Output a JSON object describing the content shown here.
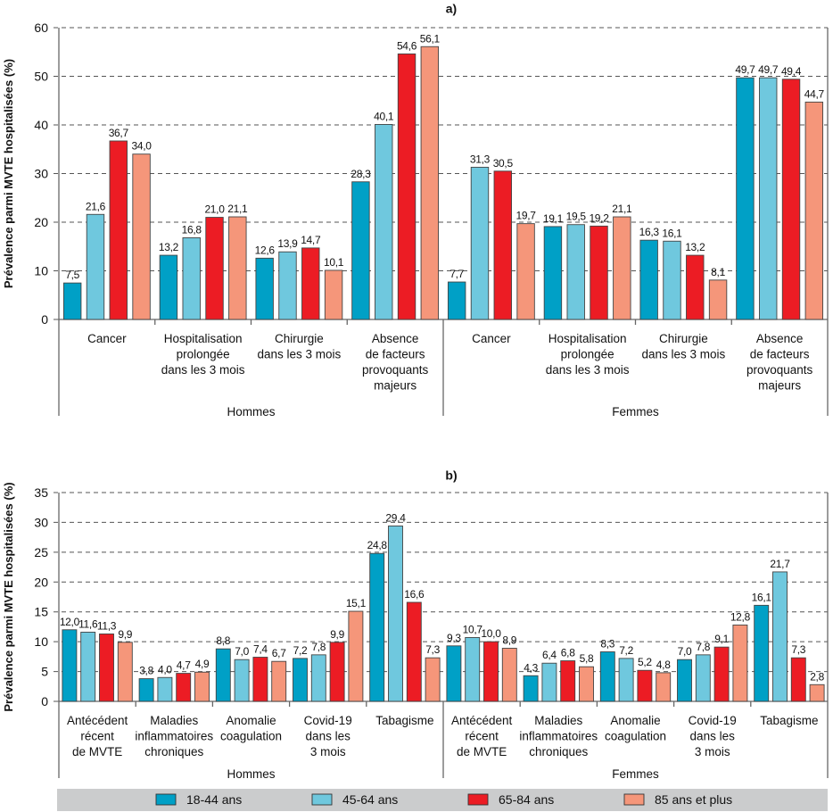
{
  "legend": [
    {
      "label": "18-44 ans",
      "color": "#00a0c6"
    },
    {
      "label": "45-64 ans",
      "color": "#6fc8de"
    },
    {
      "label": "65-84 ans",
      "color": "#ec1c24"
    },
    {
      "label": "85 ans et plus",
      "color": "#f5967a"
    }
  ],
  "chart_data": [
    {
      "type": "bar",
      "title": "a)",
      "ylabel": "Prévalence parmi MVTE hospitalisées (%)",
      "xlabel": "",
      "ylim": [
        0,
        60
      ],
      "yticks": [
        0,
        10,
        20,
        30,
        40,
        50,
        60
      ],
      "grid": true,
      "legend_position": "bottom",
      "groups": [
        {
          "name": "Hommes",
          "categories": [
            {
              "label": [
                "Cancer"
              ],
              "values": [
                "7,5",
                "21,6",
                "36,7",
                "34,0"
              ]
            },
            {
              "label": [
                "Hospitalisation",
                "prolongée",
                "dans les 3 mois"
              ],
              "values": [
                "13,2",
                "16,8",
                "21,0",
                "21,1"
              ]
            },
            {
              "label": [
                "Chirurgie",
                "dans les 3 mois"
              ],
              "values": [
                "12,6",
                "13,9",
                "14,7",
                "10,1"
              ]
            },
            {
              "label": [
                "Absence",
                "de facteurs",
                "provoquants",
                "majeurs"
              ],
              "values": [
                "28,3",
                "40,1",
                "54,6",
                "56,1"
              ]
            }
          ]
        },
        {
          "name": "Femmes",
          "categories": [
            {
              "label": [
                "Cancer"
              ],
              "values": [
                "7,7",
                "31,3",
                "30,5",
                "19,7"
              ]
            },
            {
              "label": [
                "Hospitalisation",
                "prolongée",
                "dans les 3 mois"
              ],
              "values": [
                "19,1",
                "19,5",
                "19,2",
                "21,1"
              ]
            },
            {
              "label": [
                "Chirurgie",
                "dans les 3 mois"
              ],
              "values": [
                "16,3",
                "16,1",
                "13,2",
                "8,1"
              ]
            },
            {
              "label": [
                "Absence",
                "de facteurs",
                "provoquants",
                "majeurs"
              ],
              "values": [
                "49,7",
                "49,7",
                "49,4",
                "44,7"
              ]
            }
          ]
        }
      ]
    },
    {
      "type": "bar",
      "title": "b)",
      "ylabel": "Prévalence parmi MVTE hospitalisées (%)",
      "xlabel": "",
      "ylim": [
        0,
        35
      ],
      "yticks": [
        0,
        5,
        10,
        15,
        20,
        25,
        30,
        35
      ],
      "grid": true,
      "legend_position": "bottom",
      "groups": [
        {
          "name": "Hommes",
          "categories": [
            {
              "label": [
                "Antécédent",
                "récent",
                "de MVTE"
              ],
              "values": [
                "12,0",
                "11,6",
                "11,3",
                "9,9"
              ]
            },
            {
              "label": [
                "Maladies",
                "inflammatoires",
                "chroniques"
              ],
              "values": [
                "3,8",
                "4,0",
                "4,7",
                "4,9"
              ]
            },
            {
              "label": [
                "Anomalie",
                "coagulation"
              ],
              "values": [
                "8,8",
                "7,0",
                "7,4",
                "6,7"
              ]
            },
            {
              "label": [
                "Covid-19",
                "dans les",
                "3 mois"
              ],
              "values": [
                "7,2",
                "7,8",
                "9,9",
                "15,1"
              ]
            },
            {
              "label": [
                "Tabagisme"
              ],
              "values": [
                "24,8",
                "29,4",
                "16,6",
                "7,3"
              ]
            }
          ]
        },
        {
          "name": "Femmes",
          "categories": [
            {
              "label": [
                "Antécédent",
                "récent",
                "de MVTE"
              ],
              "values": [
                "9,3",
                "10,7",
                "10,0",
                "8,9"
              ]
            },
            {
              "label": [
                "Maladies",
                "inflammatoires",
                "chroniques"
              ],
              "values": [
                "4,3",
                "6,4",
                "6,8",
                "5,8"
              ]
            },
            {
              "label": [
                "Anomalie",
                "coagulation"
              ],
              "values": [
                "8,3",
                "7,2",
                "5,2",
                "4,8"
              ]
            },
            {
              "label": [
                "Covid-19",
                "dans les",
                "3 mois"
              ],
              "values": [
                "7,0",
                "7,8",
                "9,1",
                "12,8"
              ]
            },
            {
              "label": [
                "Tabagisme"
              ],
              "values": [
                "16,1",
                "21,7",
                "7,3",
                "2,8"
              ]
            }
          ]
        }
      ]
    }
  ]
}
